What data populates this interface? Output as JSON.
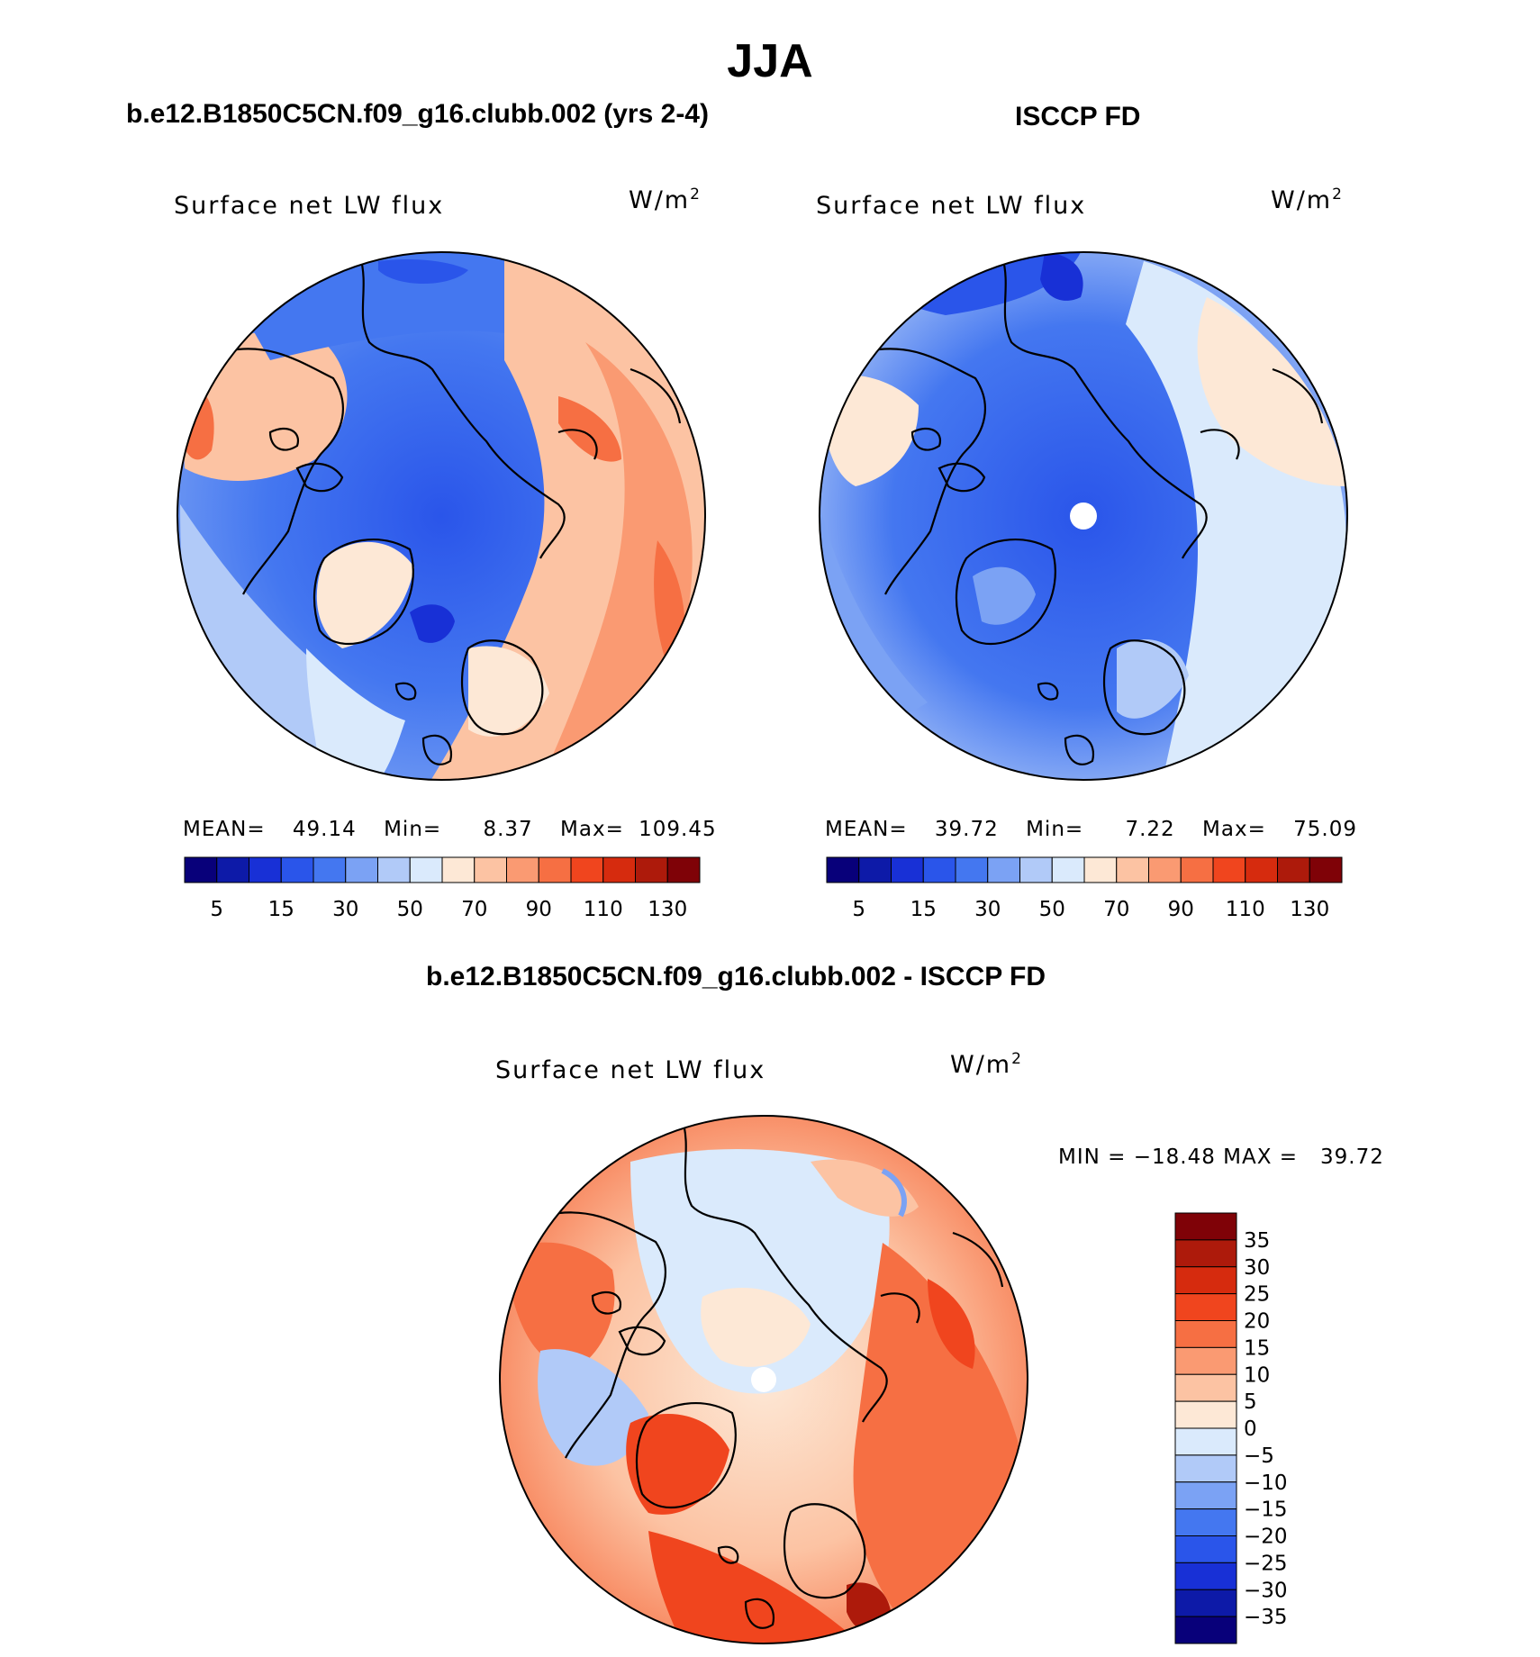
{
  "main_title": "JJA",
  "colors": {
    "abs_palette": [
      "#08007a",
      "#0d1aa8",
      "#1830d6",
      "#2a55ea",
      "#4477f0",
      "#7ba2f4",
      "#b1caf8",
      "#daeafc",
      "#fde8d6",
      "#fcc3a3",
      "#fa9a72",
      "#f66f43",
      "#f0451e",
      "#d62b0e",
      "#ad1a0b",
      "#7f0207"
    ],
    "diff_palette": [
      "#08007a",
      "#0d1aa8",
      "#1830d6",
      "#2a55ea",
      "#4477f0",
      "#7ba2f4",
      "#b1caf8",
      "#daeafc",
      "#fde8d6",
      "#fcc3a3",
      "#fa9a72",
      "#f66f43",
      "#f0451e",
      "#d62b0e",
      "#ad1a0b",
      "#7f0207"
    ],
    "coast": "#000000"
  },
  "chart_data": [
    {
      "type": "polar-contour-map",
      "subtitle": "b.e12.B1850C5CN.f09_g16.clubb.002 (yrs 2-4)",
      "title": "Surface net LW flux",
      "units": "W/m",
      "units_sup": "2",
      "stats": {
        "mean_label": "MEAN=",
        "mean": "49.14",
        "min_label": "Min=",
        "min": "8.37",
        "max_label": "Max=",
        "max": "109.45"
      },
      "colorbar": {
        "orientation": "horizontal",
        "tick_labels": [
          "5",
          "15",
          "30",
          "50",
          "70",
          "90",
          "110",
          "130"
        ]
      }
    },
    {
      "type": "polar-contour-map",
      "subtitle": "ISCCP FD",
      "title": "Surface net LW flux",
      "units": "W/m",
      "units_sup": "2",
      "stats": {
        "mean_label": "MEAN=",
        "mean": "39.72",
        "min_label": "Min=",
        "min": "7.22",
        "max_label": "Max=",
        "max": "75.09"
      },
      "colorbar": {
        "orientation": "horizontal",
        "tick_labels": [
          "5",
          "15",
          "30",
          "50",
          "70",
          "90",
          "110",
          "130"
        ]
      }
    },
    {
      "type": "polar-contour-map",
      "subtitle": "b.e12.B1850C5CN.f09_g16.clubb.002 - ISCCP FD",
      "title": "Surface net LW flux",
      "units": "W/m",
      "units_sup": "2",
      "stats": {
        "text": "MIN = −18.48 MAX =   39.72"
      },
      "colorbar": {
        "orientation": "vertical",
        "tick_labels": [
          "35",
          "30",
          "25",
          "20",
          "15",
          "10",
          "5",
          "0",
          "−5",
          "−10",
          "−15",
          "−20",
          "−25",
          "−30",
          "−35"
        ]
      }
    }
  ]
}
